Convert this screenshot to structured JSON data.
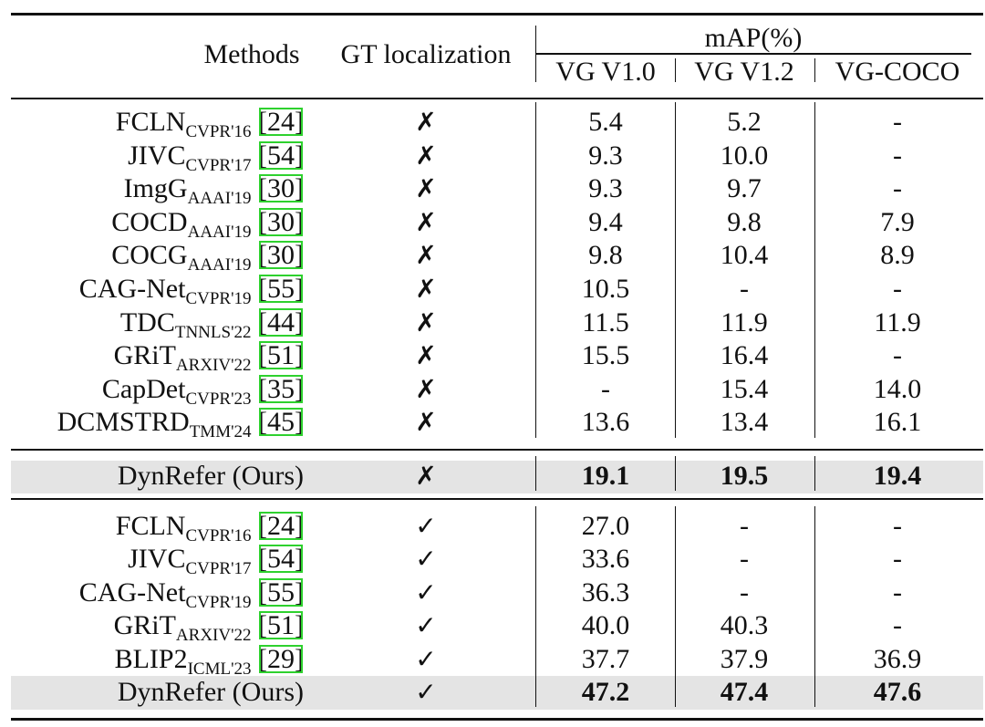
{
  "header": {
    "methods": "Methods",
    "gt": "GT localization",
    "metric": "mAP(%)",
    "columns": [
      "VG V1.0",
      "VG V1.2",
      "VG-COCO"
    ]
  },
  "sections": [
    {
      "rows": [
        {
          "method": "FCLN",
          "venue": "CVPR'16",
          "cite": "[24]",
          "gt": "✗",
          "values": [
            "5.4",
            "5.2",
            "-"
          ]
        },
        {
          "method": "JIVC",
          "venue": "CVPR'17",
          "cite": "[54]",
          "gt": "✗",
          "values": [
            "9.3",
            "10.0",
            "-"
          ]
        },
        {
          "method": "ImgG",
          "venue": "AAAI'19",
          "cite": "[30]",
          "gt": "✗",
          "values": [
            "9.3",
            "9.7",
            "-"
          ]
        },
        {
          "method": "COCD",
          "venue": "AAAI'19",
          "cite": "[30]",
          "gt": "✗",
          "values": [
            "9.4",
            "9.8",
            "7.9"
          ]
        },
        {
          "method": "COCG",
          "venue": "AAAI'19",
          "cite": "[30]",
          "gt": "✗",
          "values": [
            "9.8",
            "10.4",
            "8.9"
          ]
        },
        {
          "method": "CAG-Net",
          "venue": "CVPR'19",
          "cite": "[55]",
          "gt": "✗",
          "values": [
            "10.5",
            "-",
            "-"
          ]
        },
        {
          "method": "TDC",
          "venue": "TNNLS'22",
          "cite": "[44]",
          "gt": "✗",
          "values": [
            "11.5",
            "11.9",
            "11.9"
          ]
        },
        {
          "method": "GRiT",
          "venue": "ARXIV'22",
          "cite": "[51]",
          "gt": "✗",
          "values": [
            "15.5",
            "16.4",
            "-"
          ]
        },
        {
          "method": "CapDet",
          "venue": "CVPR'23",
          "cite": "[35]",
          "gt": "✗",
          "values": [
            "-",
            "15.4",
            "14.0"
          ]
        },
        {
          "method": "DCMSTRD",
          "venue": "TMM'24",
          "cite": "[45]",
          "gt": "✗",
          "values": [
            "13.6",
            "13.4",
            "16.1"
          ]
        }
      ]
    },
    {
      "rows": [
        {
          "method": "DynRefer (Ours)",
          "gt": "✗",
          "values": [
            "19.1",
            "19.5",
            "19.4"
          ],
          "highlight": true
        }
      ]
    },
    {
      "rows": [
        {
          "method": "FCLN",
          "venue": "CVPR'16",
          "cite": "[24]",
          "gt": "✓",
          "values": [
            "27.0",
            "-",
            "-"
          ]
        },
        {
          "method": "JIVC",
          "venue": "CVPR'17",
          "cite": "[54]",
          "gt": "✓",
          "values": [
            "33.6",
            "-",
            "-"
          ]
        },
        {
          "method": "CAG-Net",
          "venue": "CVPR'19",
          "cite": "[55]",
          "gt": "✓",
          "values": [
            "36.3",
            "-",
            "-"
          ]
        },
        {
          "method": "GRiT",
          "venue": "ARXIV'22",
          "cite": "[51]",
          "gt": "✓",
          "values": [
            "40.0",
            "40.3",
            "-"
          ]
        },
        {
          "method": "BLIP2",
          "venue": "ICML'23",
          "cite": "[29]",
          "gt": "✓",
          "values": [
            "37.7",
            "37.9",
            "36.9"
          ]
        },
        {
          "method": "DynRefer (Ours)",
          "gt": "✓",
          "values": [
            "47.2",
            "47.4",
            "47.6"
          ],
          "highlight": true
        }
      ]
    }
  ]
}
